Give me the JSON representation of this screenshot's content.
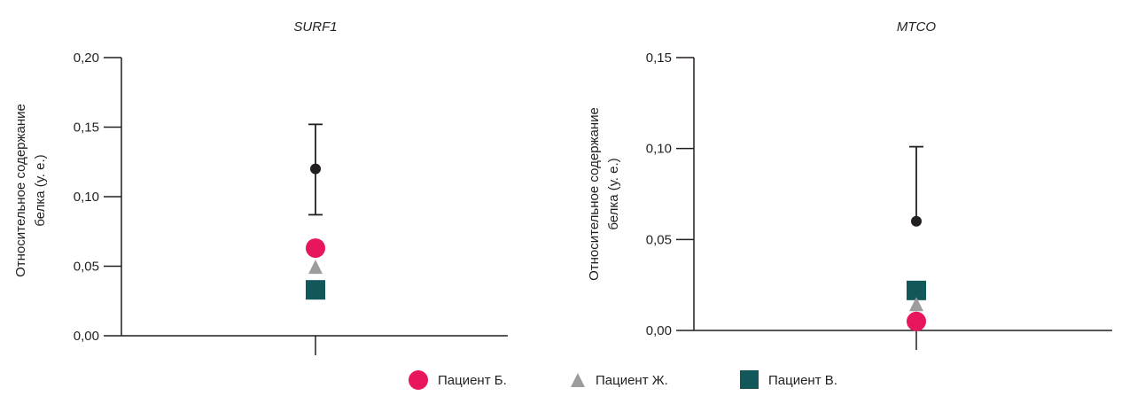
{
  "colors": {
    "mean": "#231f20",
    "patient_b": "#e8175d",
    "patient_zh": "#9d9d9c",
    "patient_v": "#12575a",
    "axis": "#231f20"
  },
  "legend": {
    "items": [
      {
        "label": "Пациент Б.",
        "marker": "circle",
        "color": "#e8175d"
      },
      {
        "label": "Пациент Ж.",
        "marker": "triangle",
        "color": "#9d9d9c"
      },
      {
        "label": "Пациент В.",
        "marker": "square",
        "color": "#12575a"
      }
    ]
  },
  "chart_data": [
    {
      "type": "scatter",
      "title": "SURF1",
      "ylabel_lines": [
        "Относительное содержание",
        "белка (у. е.)"
      ],
      "ylim": [
        0,
        0.2
      ],
      "yticks": [
        "0,00",
        "0,05",
        "0,10",
        "0,15",
        "0,20"
      ],
      "ytick_values": [
        0,
        0.05,
        0.1,
        0.15,
        0.2
      ],
      "mean": 0.12,
      "error_low": 0.087,
      "error_high": 0.152,
      "patients": {
        "patient_b": 0.063,
        "patient_zh": 0.049,
        "patient_v": 0.033
      }
    },
    {
      "type": "scatter",
      "title": "MTCO",
      "ylabel_lines": [
        "Относительное содержание",
        "белка (у. е.)"
      ],
      "ylim": [
        0,
        0.15
      ],
      "yticks": [
        "0,00",
        "0,05",
        "0,10",
        "0,15"
      ],
      "ytick_values": [
        0,
        0.05,
        0.1,
        0.15
      ],
      "mean": 0.06,
      "error_low": 0.06,
      "error_high": 0.101,
      "patients": {
        "patient_b": 0.005,
        "patient_zh": 0.014,
        "patient_v": 0.022
      }
    }
  ]
}
